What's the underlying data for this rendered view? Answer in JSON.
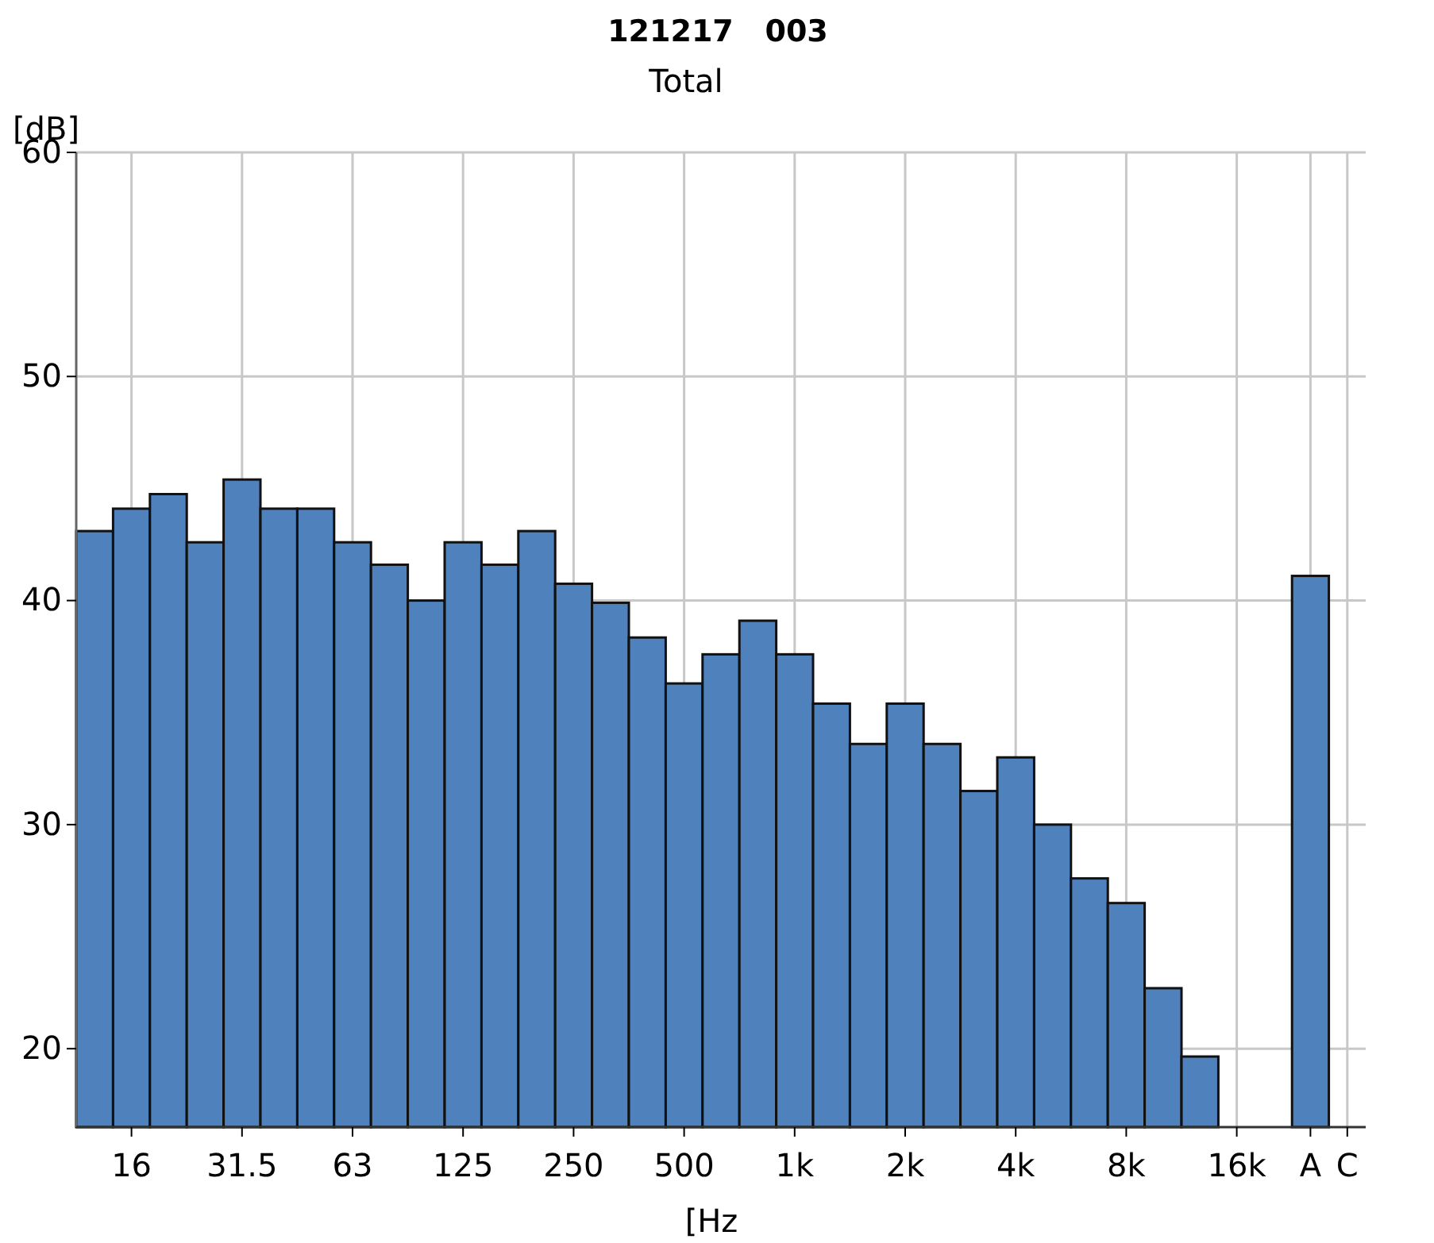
{
  "chart_data": {
    "type": "bar",
    "title": "121217   003",
    "subtitle": "Total",
    "xlabel": "[Hz",
    "ylabel": "[dB]",
    "categories": [
      null,
      "16",
      null,
      null,
      "31.5",
      null,
      null,
      "63",
      null,
      null,
      "125",
      null,
      null,
      "250",
      null,
      null,
      "500",
      null,
      null,
      "1k",
      null,
      null,
      "2k",
      null,
      null,
      "4k",
      null,
      null,
      "8k",
      null,
      null,
      "16k",
      null,
      "A",
      "C"
    ],
    "values": [
      43.1,
      44.1,
      44.75,
      42.6,
      45.4,
      44.1,
      44.1,
      42.6,
      41.6,
      40,
      42.6,
      41.6,
      43.1,
      40.75,
      39.9,
      38.35,
      36.3,
      37.6,
      39.1,
      37.6,
      35.4,
      33.6,
      35.4,
      33.6,
      31.5,
      33,
      30,
      27.6,
      26.5,
      22.7,
      19.65,
      null,
      null,
      41.1,
      null
    ],
    "color": "#4f81bd",
    "ylim": [
      16.5,
      60
    ],
    "yticks": [
      20,
      30,
      40,
      50,
      60
    ],
    "grid": true
  }
}
